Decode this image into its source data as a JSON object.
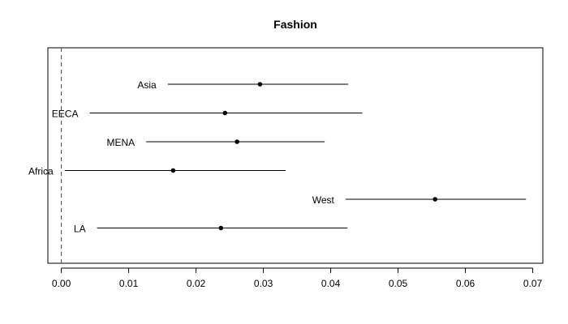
{
  "chart_data": {
    "type": "forest",
    "title": "Fashion",
    "xlabel": "",
    "ylabel": "",
    "xlim": [
      -0.002,
      0.0715
    ],
    "xticks": [
      0.0,
      0.01,
      0.02,
      0.03,
      0.04,
      0.05,
      0.06,
      0.07
    ],
    "xtick_labels": [
      "0.00",
      "0.01",
      "0.02",
      "0.03",
      "0.04",
      "0.05",
      "0.06",
      "0.07"
    ],
    "reference_line": 0.0,
    "reference_line_style": "dashed",
    "grid": false,
    "legend": "none",
    "rows": [
      {
        "label": "Asia",
        "estimate": 0.0295,
        "lower": 0.0158,
        "upper": 0.0426
      },
      {
        "label": "EECA",
        "estimate": 0.0243,
        "lower": 0.0042,
        "upper": 0.0447
      },
      {
        "label": "MENA",
        "estimate": 0.0261,
        "lower": 0.0126,
        "upper": 0.0391
      },
      {
        "label": "Africa",
        "estimate": 0.0166,
        "lower": 0.0005,
        "upper": 0.0333
      },
      {
        "label": "West",
        "estimate": 0.0555,
        "lower": 0.0422,
        "upper": 0.069
      },
      {
        "label": "LA",
        "estimate": 0.0237,
        "lower": 0.0053,
        "upper": 0.0425
      }
    ]
  }
}
